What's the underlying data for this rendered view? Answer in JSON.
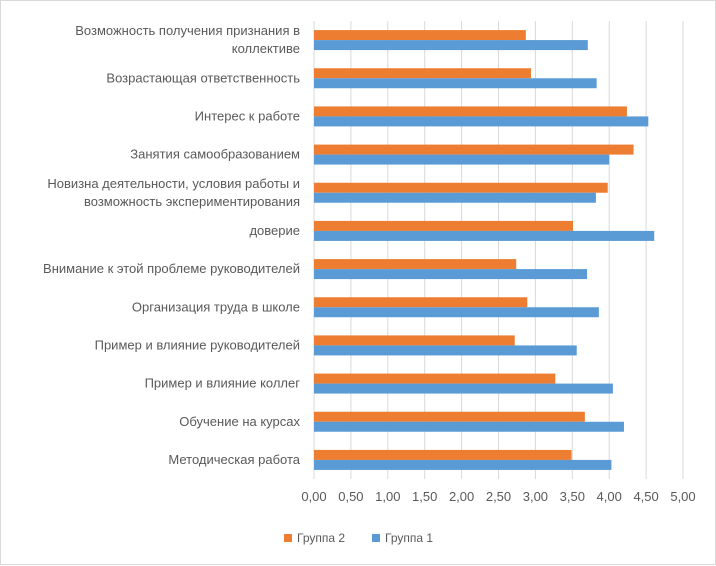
{
  "chart_data": {
    "type": "bar",
    "orientation": "horizontal",
    "categories": [
      [
        "Возможность получения признания в",
        "коллективе"
      ],
      [
        "Возрастающая ответственность"
      ],
      [
        "Интерес к работе"
      ],
      [
        "Занятия самообразованием"
      ],
      [
        "Новизна деятельности, условия работы и",
        "возможность экспериментирования"
      ],
      [
        "доверие"
      ],
      [
        "Внимание к этой проблеме руководителей"
      ],
      [
        "Организация труда в школе"
      ],
      [
        "Пример и влияние руководителей"
      ],
      [
        "Пример и влияние коллег"
      ],
      [
        "Обучение на курсах"
      ],
      [
        "Методическая работа"
      ]
    ],
    "series": [
      {
        "name": "Группа 2",
        "color": "#ED7D31",
        "values": [
          2.87,
          2.94,
          4.24,
          4.33,
          3.98,
          3.51,
          2.74,
          2.89,
          2.72,
          3.27,
          3.67,
          3.49
        ]
      },
      {
        "name": "Группа 1",
        "color": "#5B9BD5",
        "values": [
          3.71,
          3.83,
          4.53,
          4.0,
          3.82,
          4.61,
          3.7,
          3.86,
          3.56,
          4.05,
          4.2,
          4.03
        ]
      }
    ],
    "xlim": [
      0,
      5
    ],
    "xticks": [
      "0,00",
      "0,50",
      "1,00",
      "1,50",
      "2,00",
      "2,50",
      "3,00",
      "3,50",
      "4,00",
      "4,50",
      "5,00"
    ],
    "grid": true,
    "legend_position": "bottom"
  }
}
